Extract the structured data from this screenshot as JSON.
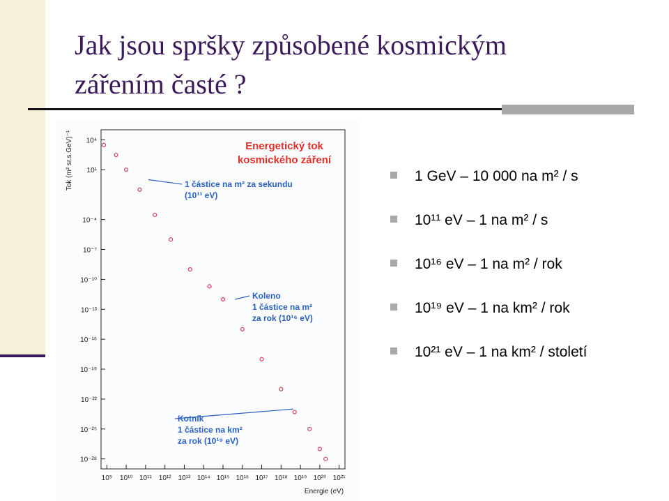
{
  "slide": {
    "title_lines": [
      "Jak jsou spršky způsobené kosmickým",
      "zářením časté ?"
    ],
    "bullets": [
      "1 GeV – 10 000 na m² / s",
      "10¹¹ eV – 1 na m² / s",
      "10¹⁶ eV – 1 na m² / rok",
      "10¹⁹ eV – 1 na km² / rok",
      "10²¹ eV – 1 na km² / století"
    ]
  },
  "chart_data": {
    "type": "scatter",
    "title_lines": [
      "Energetický tok",
      "kosmického záření"
    ],
    "x_label": "Energie (eV)",
    "y_label": "Tok (m² sr.s.GeV)⁻¹",
    "log_x": true,
    "log_y": true,
    "xlim": [
      500000000,
      2e+21
    ],
    "ylim": [
      1e-29,
      100000
    ],
    "xticks": [
      {
        "value": 1000000000.0,
        "label": "10⁹"
      },
      {
        "value": 10000000000.0,
        "label": "10¹⁰"
      },
      {
        "value": 100000000000.0,
        "label": "10¹¹"
      },
      {
        "value": 1000000000000.0,
        "label": "10¹²"
      },
      {
        "value": 10000000000000.0,
        "label": "10¹³"
      },
      {
        "value": 100000000000000.0,
        "label": "10¹⁴"
      },
      {
        "value": 1000000000000000.0,
        "label": "10¹⁵"
      },
      {
        "value": 1e+16,
        "label": "10¹⁶"
      },
      {
        "value": 1e+17,
        "label": "10¹⁷"
      },
      {
        "value": 1e+18,
        "label": "10¹⁸"
      },
      {
        "value": 1e+19,
        "label": "10¹⁹"
      },
      {
        "value": 1e+20,
        "label": "10²⁰"
      },
      {
        "value": 1e+21,
        "label": "10²¹"
      }
    ],
    "yticks": [
      {
        "value": 10000,
        "label": "10⁴"
      },
      {
        "value": 10,
        "label": "10¹"
      },
      {
        "value": 0.0001,
        "label": "10⁻⁴"
      },
      {
        "value": 1e-07,
        "label": "10⁻⁷"
      },
      {
        "value": 1e-10,
        "label": "10⁻¹⁰"
      },
      {
        "value": 1e-13,
        "label": "10⁻¹³"
      },
      {
        "value": 1e-16,
        "label": "10⁻¹⁶"
      },
      {
        "value": 1e-19,
        "label": "10⁻¹⁹"
      },
      {
        "value": 1e-22,
        "label": "10⁻²²"
      },
      {
        "value": 1e-25,
        "label": "10⁻²⁵"
      },
      {
        "value": 1e-28,
        "label": "10⁻²⁸"
      }
    ],
    "series": [
      {
        "color": "#d04060",
        "x": [
          700000000.0,
          3000000000.0,
          10000000000.0,
          50000000000.0,
          300000000000.0,
          2000000000000.0,
          20000000000000.0,
          200000000000000.0,
          1000000000000000.0,
          1e+16,
          1e+17,
          1e+18,
          5e+18,
          3e+19,
          1e+20,
          2e+20
        ],
        "values": [
          3000,
          300,
          10,
          0.1,
          0.0003,
          1e-06,
          1e-09,
          2e-11,
          1e-12,
          1e-15,
          1e-18,
          1e-21,
          5e-24,
          1e-25,
          1e-27,
          1e-28
        ]
      }
    ],
    "annotations": [
      {
        "lines": [
          "1 částice na m² za sekundu",
          "(10¹¹ eV)"
        ],
        "x": 100000000000.0,
        "y": 1
      },
      {
        "lines": [
          "Koleno",
          "1 částice na m²",
          "za rok (10¹⁶ eV)"
        ],
        "x": 3000000000000000.0,
        "y": 1e-12
      },
      {
        "lines": [
          "Kotník",
          "1 částice na km²",
          "za rok (10¹⁹ eV)"
        ],
        "x": 3e+18,
        "y": 1e-23
      }
    ]
  }
}
